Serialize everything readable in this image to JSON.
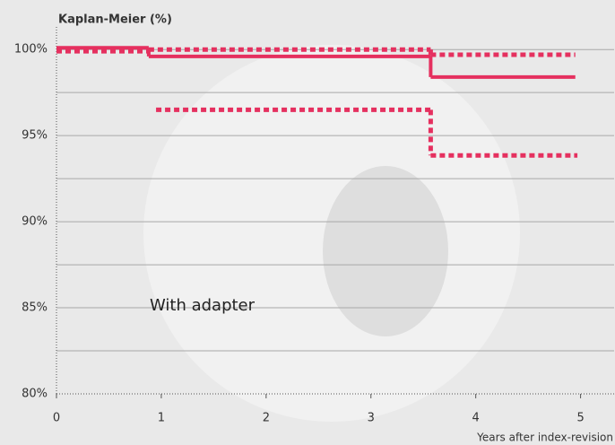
{
  "chart_data": {
    "type": "step",
    "title": "Kaplan-Meier (%)",
    "x_label": "Years after index-revision",
    "annotation": "With adapter",
    "xlim": [
      0,
      5.32
    ],
    "xticks": [
      0,
      1,
      2,
      3,
      4,
      5
    ],
    "ylim": [
      80,
      101
    ],
    "yticks": [
      {
        "value": 80,
        "label": "80%"
      },
      {
        "value": 85,
        "label": "85%"
      },
      {
        "value": 90,
        "label": "90%"
      },
      {
        "value": 95,
        "label": "95%"
      },
      {
        "value": 100,
        "label": "100%"
      }
    ],
    "minor_yticks": [
      82.5,
      87.5,
      92.5,
      97.5
    ],
    "grid": true,
    "series": [
      {
        "style": "solid",
        "color": "#e5305f",
        "x": [
          0,
          0.88,
          3.57,
          4.95
        ],
        "values": [
          100.1,
          99.6,
          98.4,
          98.4
        ]
      },
      {
        "style": "dotted",
        "color": "#e5305f",
        "x": [
          0,
          0.88,
          3.57,
          4.95
        ],
        "values": [
          99.9,
          100.0,
          99.7,
          99.7
        ]
      },
      {
        "style": "dotted",
        "color": "#e5305f",
        "x": [
          0.95,
          3.57,
          4.97
        ],
        "values": [
          96.5,
          93.85,
          93.85
        ]
      }
    ]
  }
}
